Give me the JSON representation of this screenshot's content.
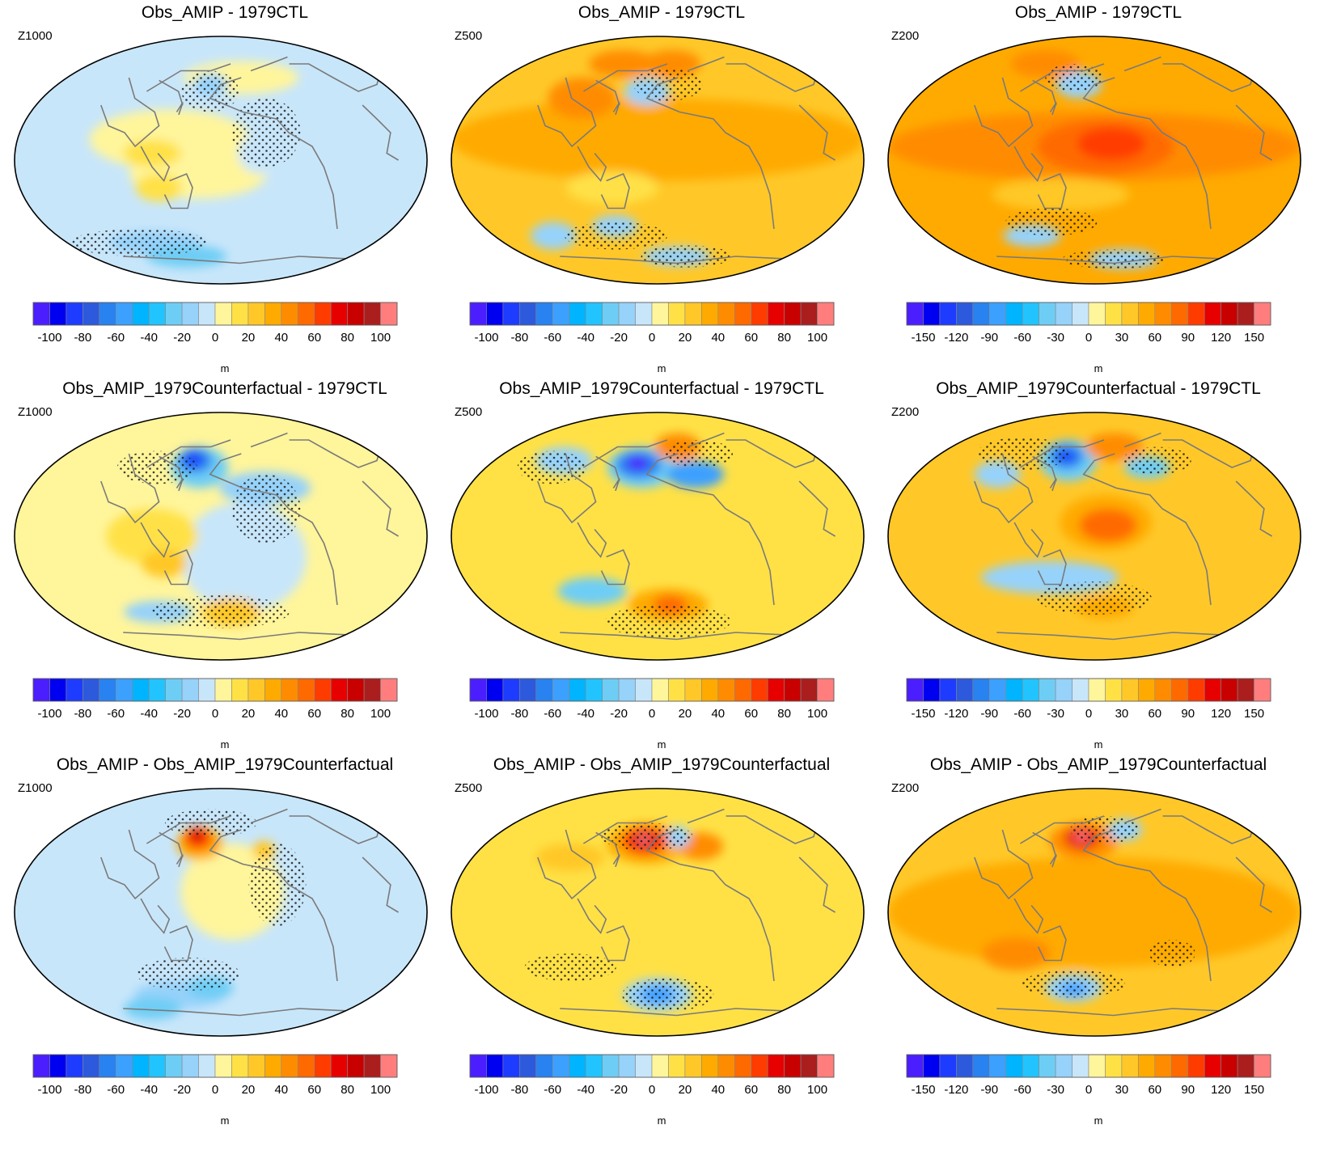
{
  "colors": {
    "colorbar_levels": [
      "#4b1eff",
      "#0000f0",
      "#1e3cff",
      "#2d5adc",
      "#2882f0",
      "#3ca0ff",
      "#00b4ff",
      "#21c4ff",
      "#6ecdf5",
      "#96d2fa",
      "#c8e6fa",
      "#fff59b",
      "#ffe146",
      "#ffc828",
      "#ffaa00",
      "#ff8c00",
      "#ff6a00",
      "#ff3c00",
      "#e60000",
      "#c80000",
      "#aa1e1e",
      "#ff7d7d"
    ],
    "stipple": "#1a1a1a",
    "coast": "#7a7a7a"
  },
  "units": "m",
  "panels": [
    {
      "title": "Obs_AMIP - 1979CTL",
      "level": "Z1000",
      "ticks": [
        "-100",
        "-80",
        "-60",
        "-40",
        "-20",
        "0",
        "20",
        "40",
        "60",
        "80",
        "100"
      ]
    },
    {
      "title": "Obs_AMIP - 1979CTL",
      "level": "Z500",
      "ticks": [
        "-100",
        "-80",
        "-60",
        "-40",
        "-20",
        "0",
        "20",
        "40",
        "60",
        "80",
        "100"
      ]
    },
    {
      "title": "Obs_AMIP - 1979CTL",
      "level": "Z200",
      "ticks": [
        "-150",
        "-120",
        "-90",
        "-60",
        "-30",
        "0",
        "30",
        "60",
        "90",
        "120",
        "150"
      ]
    },
    {
      "title": "Obs_AMIP_1979Counterfactual - 1979CTL",
      "level": "Z1000",
      "ticks": [
        "-100",
        "-80",
        "-60",
        "-40",
        "-20",
        "0",
        "20",
        "40",
        "60",
        "80",
        "100"
      ]
    },
    {
      "title": "Obs_AMIP_1979Counterfactual - 1979CTL",
      "level": "Z500",
      "ticks": [
        "-100",
        "-80",
        "-60",
        "-40",
        "-20",
        "0",
        "20",
        "40",
        "60",
        "80",
        "100"
      ]
    },
    {
      "title": "Obs_AMIP_1979Counterfactual - 1979CTL",
      "level": "Z200",
      "ticks": [
        "-150",
        "-120",
        "-90",
        "-60",
        "-30",
        "0",
        "30",
        "60",
        "90",
        "120",
        "150"
      ]
    },
    {
      "title": "Obs_AMIP - Obs_AMIP_1979Counterfactual",
      "level": "Z1000",
      "ticks": [
        "-100",
        "-80",
        "-60",
        "-40",
        "-20",
        "0",
        "20",
        "40",
        "60",
        "80",
        "100"
      ]
    },
    {
      "title": "Obs_AMIP - Obs_AMIP_1979Counterfactual",
      "level": "Z500",
      "ticks": [
        "-100",
        "-80",
        "-60",
        "-40",
        "-20",
        "0",
        "20",
        "40",
        "60",
        "80",
        "100"
      ]
    },
    {
      "title": "Obs_AMIP - Obs_AMIP_1979Counterfactual",
      "level": "Z200",
      "ticks": [
        "-150",
        "-120",
        "-90",
        "-60",
        "-30",
        "0",
        "30",
        "60",
        "90",
        "120",
        "150"
      ]
    }
  ],
  "chart_data": {
    "type": "heatmap",
    "projection": "Robinson (Pacific-centred)",
    "stippling": "significance",
    "maps": [
      {
        "title": "Obs_AMIP - 1979CTL",
        "level": "Z1000",
        "units": "m",
        "range": [
          -100,
          100
        ],
        "background": "#c8e6fa",
        "blobs": [
          [
            -45,
            15,
            70,
            22,
            "#fff59b"
          ],
          [
            20,
            60,
            50,
            12,
            "#fff59b"
          ],
          [
            -20,
            -10,
            60,
            18,
            "#fff59b"
          ],
          [
            -55,
            -20,
            20,
            10,
            "#ffe146"
          ],
          [
            -60,
            5,
            25,
            10,
            "#ffe146"
          ],
          [
            -65,
            -60,
            40,
            8,
            "#96d2fa"
          ],
          [
            -35,
            -70,
            35,
            8,
            "#6ecdf5"
          ],
          [
            -10,
            55,
            15,
            8,
            "#96d2fa"
          ],
          [
            35,
            5,
            20,
            15,
            "#c8e6fa"
          ]
        ]
      },
      {
        "title": "Obs_AMIP - 1979CTL",
        "level": "Z500",
        "units": "m",
        "range": [
          -100,
          100
        ],
        "background": "#ffc828",
        "blobs": [
          [
            0,
            15,
            180,
            30,
            "#ffaa00"
          ],
          [
            -70,
            45,
            30,
            15,
            "#ff8c00"
          ],
          [
            -35,
            70,
            30,
            10,
            "#ff8c00"
          ],
          [
            15,
            70,
            25,
            10,
            "#ff8c00"
          ],
          [
            -10,
            50,
            20,
            10,
            "#96d2fa"
          ],
          [
            -40,
            -20,
            40,
            12,
            "#ffe146"
          ],
          [
            -40,
            -48,
            20,
            8,
            "#96d2fa"
          ],
          [
            20,
            -70,
            30,
            7,
            "#96d2fa"
          ],
          [
            -100,
            -55,
            20,
            10,
            "#96d2fa"
          ]
        ]
      },
      {
        "title": "Obs_AMIP - 1979CTL",
        "level": "Z200",
        "units": "m",
        "range": [
          -150,
          150
        ],
        "background": "#ffaa00",
        "blobs": [
          [
            0,
            10,
            180,
            25,
            "#ff8c00"
          ],
          [
            10,
            10,
            60,
            20,
            "#ff6a00"
          ],
          [
            15,
            12,
            30,
            12,
            "#ff3c00"
          ],
          [
            -15,
            55,
            20,
            10,
            "#96d2fa"
          ],
          [
            -50,
            70,
            30,
            10,
            "#ff8c00"
          ],
          [
            -30,
            -25,
            60,
            12,
            "#ffc828"
          ],
          [
            -60,
            -55,
            25,
            8,
            "#96d2fa"
          ],
          [
            30,
            -72,
            30,
            7,
            "#96d2fa"
          ]
        ]
      },
      {
        "title": "Obs_AMIP_1979Counterfactual - 1979CTL",
        "level": "Z1000",
        "units": "m",
        "range": [
          -100,
          100
        ],
        "background": "#fff59b",
        "blobs": [
          [
            -20,
            50,
            25,
            15,
            "#6ecdf5"
          ],
          [
            -25,
            55,
            15,
            9,
            "#2882f0"
          ],
          [
            -26,
            56,
            8,
            5,
            "#1e3cff"
          ],
          [
            20,
            -15,
            55,
            40,
            "#c8e6fa"
          ],
          [
            40,
            35,
            40,
            12,
            "#96d2fa"
          ],
          [
            -60,
            0,
            40,
            20,
            "#ffe146"
          ],
          [
            -50,
            -20,
            20,
            10,
            "#ffc828"
          ],
          [
            10,
            -55,
            25,
            10,
            "#ffc828"
          ],
          [
            -60,
            -55,
            30,
            8,
            "#96d2fa"
          ]
        ]
      },
      {
        "title": "Obs_AMIP_1979Counterfactual - 1979CTL",
        "level": "Z500",
        "units": "m",
        "range": [
          -100,
          100
        ],
        "background": "#ffe146",
        "blobs": [
          [
            -15,
            50,
            30,
            15,
            "#6ecdf5"
          ],
          [
            -18,
            52,
            20,
            10,
            "#2882f0"
          ],
          [
            -19,
            53,
            10,
            5,
            "#4b1eff"
          ],
          [
            35,
            45,
            25,
            10,
            "#3ca0ff"
          ],
          [
            20,
            65,
            20,
            10,
            "#ff8c00"
          ],
          [
            10,
            -50,
            35,
            12,
            "#ffaa00"
          ],
          [
            12,
            -50,
            15,
            7,
            "#ff6a00"
          ],
          [
            -60,
            -40,
            30,
            10,
            "#6ecdf5"
          ],
          [
            -90,
            55,
            25,
            10,
            "#96d2fa"
          ]
        ]
      },
      {
        "title": "Obs_AMIP_1979Counterfactual - 1979CTL",
        "level": "Z200",
        "units": "m",
        "range": [
          -150,
          150
        ],
        "background": "#ffc828",
        "blobs": [
          [
            -25,
            55,
            25,
            15,
            "#6ecdf5"
          ],
          [
            -27,
            58,
            15,
            9,
            "#2882f0"
          ],
          [
            -27,
            58,
            8,
            4,
            "#1e3cff"
          ],
          [
            10,
            10,
            40,
            20,
            "#ffaa00"
          ],
          [
            12,
            8,
            25,
            12,
            "#ff6a00"
          ],
          [
            20,
            65,
            25,
            10,
            "#ff8c00"
          ],
          [
            -40,
            -30,
            60,
            12,
            "#96d2fa"
          ],
          [
            10,
            -52,
            25,
            8,
            "#ffaa00"
          ],
          [
            50,
            50,
            20,
            8,
            "#6ecdf5"
          ],
          [
            -90,
            45,
            20,
            10,
            "#96d2fa"
          ]
        ]
      },
      {
        "title": "Obs_AMIP - Obs_AMIP_1979Counterfactual",
        "level": "Z1000",
        "units": "m",
        "range": [
          -100,
          100
        ],
        "background": "#c8e6fa",
        "blobs": [
          [
            10,
            15,
            45,
            35,
            "#fff59b"
          ],
          [
            -20,
            50,
            20,
            12,
            "#ffaa00"
          ],
          [
            -22,
            54,
            12,
            8,
            "#ff3c00"
          ],
          [
            -23,
            56,
            6,
            4,
            "#c80000"
          ],
          [
            40,
            45,
            10,
            7,
            "#ffc828"
          ],
          [
            -40,
            -60,
            40,
            10,
            "#96d2fa"
          ],
          [
            -70,
            -70,
            25,
            8,
            "#6ecdf5"
          ],
          [
            -10,
            -55,
            20,
            8,
            "#6ecdf5"
          ]
        ]
      },
      {
        "title": "Obs_AMIP - Obs_AMIP_1979Counterfactual",
        "level": "Z500",
        "units": "m",
        "range": [
          -100,
          100
        ],
        "background": "#ffe146",
        "blobs": [
          [
            -10,
            50,
            35,
            15,
            "#ffaa00"
          ],
          [
            -12,
            52,
            20,
            10,
            "#ff3c00"
          ],
          [
            -13,
            53,
            10,
            6,
            "#c80000"
          ],
          [
            -13,
            53,
            6,
            3,
            "#ff7d7d"
          ],
          [
            40,
            48,
            20,
            10,
            "#ff8c00"
          ],
          [
            0,
            -60,
            30,
            12,
            "#96d2fa"
          ],
          [
            0,
            -60,
            15,
            7,
            "#3ca0ff"
          ],
          [
            20,
            55,
            10,
            8,
            "#96d2fa"
          ],
          [
            -80,
            40,
            30,
            10,
            "#ffc828"
          ]
        ]
      },
      {
        "title": "Obs_AMIP - Obs_AMIP_1979Counterfactual",
        "level": "Z200",
        "units": "m",
        "range": [
          -150,
          150
        ],
        "background": "#ffc828",
        "blobs": [
          [
            0,
            0,
            180,
            40,
            "#ffaa00"
          ],
          [
            -10,
            52,
            30,
            13,
            "#ff8c00"
          ],
          [
            -12,
            54,
            15,
            8,
            "#e60000"
          ],
          [
            -12,
            55,
            7,
            3,
            "#ff7d7d"
          ],
          [
            -20,
            -55,
            25,
            10,
            "#96d2fa"
          ],
          [
            -20,
            -56,
            12,
            5,
            "#3ca0ff"
          ],
          [
            30,
            60,
            15,
            8,
            "#96d2fa"
          ],
          [
            -70,
            -30,
            30,
            12,
            "#ff8c00"
          ]
        ]
      }
    ]
  }
}
